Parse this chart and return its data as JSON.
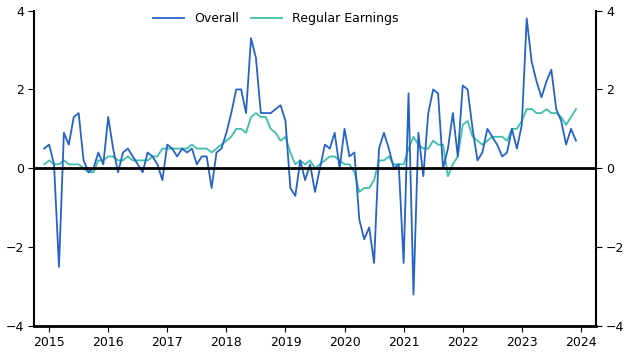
{
  "overall_color": "#2563c7",
  "regular_color": "#3dbfaa",
  "ylim": [
    -4,
    4
  ],
  "yticks": [
    -4,
    -2,
    0,
    2,
    4
  ],
  "xlim_start": 2014.75,
  "xlim_end": 2024.25,
  "xtick_years": [
    2015,
    2016,
    2017,
    2018,
    2019,
    2020,
    2021,
    2022,
    2023,
    2024
  ],
  "overall_dates": [
    2014.917,
    2015.0,
    2015.083,
    2015.167,
    2015.25,
    2015.333,
    2015.417,
    2015.5,
    2015.583,
    2015.667,
    2015.75,
    2015.833,
    2015.917,
    2016.0,
    2016.083,
    2016.167,
    2016.25,
    2016.333,
    2016.417,
    2016.5,
    2016.583,
    2016.667,
    2016.75,
    2016.833,
    2016.917,
    2017.0,
    2017.083,
    2017.167,
    2017.25,
    2017.333,
    2017.417,
    2017.5,
    2017.583,
    2017.667,
    2017.75,
    2017.833,
    2017.917,
    2018.0,
    2018.083,
    2018.167,
    2018.25,
    2018.333,
    2018.417,
    2018.5,
    2018.583,
    2018.667,
    2018.75,
    2018.833,
    2018.917,
    2019.0,
    2019.083,
    2019.167,
    2019.25,
    2019.333,
    2019.417,
    2019.5,
    2019.583,
    2019.667,
    2019.75,
    2019.833,
    2019.917,
    2020.0,
    2020.083,
    2020.167,
    2020.25,
    2020.333,
    2020.417,
    2020.5,
    2020.583,
    2020.667,
    2020.75,
    2020.833,
    2020.917,
    2021.0,
    2021.083,
    2021.167,
    2021.25,
    2021.333,
    2021.417,
    2021.5,
    2021.583,
    2021.667,
    2021.75,
    2021.833,
    2021.917,
    2022.0,
    2022.083,
    2022.167,
    2022.25,
    2022.333,
    2022.417,
    2022.5,
    2022.583,
    2022.667,
    2022.75,
    2022.833,
    2022.917,
    2023.0,
    2023.083,
    2023.167,
    2023.25,
    2023.333,
    2023.417,
    2023.5,
    2023.583,
    2023.667,
    2023.75,
    2023.833,
    2023.917
  ],
  "overall_values": [
    0.5,
    0.6,
    0.1,
    -2.5,
    0.9,
    0.6,
    1.3,
    1.4,
    0.2,
    -0.1,
    0.0,
    0.4,
    0.1,
    1.3,
    0.5,
    -0.1,
    0.4,
    0.5,
    0.3,
    0.1,
    -0.1,
    0.4,
    0.3,
    0.1,
    -0.3,
    0.6,
    0.5,
    0.3,
    0.5,
    0.4,
    0.5,
    0.1,
    0.3,
    0.3,
    -0.5,
    0.4,
    0.5,
    0.9,
    1.4,
    2.0,
    2.0,
    1.4,
    3.3,
    2.8,
    1.4,
    1.4,
    1.4,
    1.5,
    1.6,
    1.2,
    -0.5,
    -0.7,
    0.2,
    -0.3,
    0.1,
    -0.6,
    0.0,
    0.6,
    0.5,
    0.9,
    0.0,
    1.0,
    0.3,
    0.4,
    -1.3,
    -1.8,
    -1.5,
    -2.4,
    0.5,
    0.9,
    0.5,
    0.0,
    0.1,
    -2.4,
    1.9,
    -3.2,
    0.9,
    -0.2,
    1.4,
    2.0,
    1.9,
    0.0,
    0.5,
    1.4,
    0.3,
    2.1,
    2.0,
    1.0,
    0.2,
    0.4,
    1.0,
    0.8,
    0.6,
    0.3,
    0.4,
    1.0,
    0.5,
    1.1,
    3.8,
    2.7,
    2.2,
    1.8,
    2.2,
    2.5,
    1.5,
    1.2,
    0.6,
    1.0,
    0.7
  ],
  "regular_dates": [
    2014.917,
    2015.0,
    2015.083,
    2015.167,
    2015.25,
    2015.333,
    2015.417,
    2015.5,
    2015.583,
    2015.667,
    2015.75,
    2015.833,
    2015.917,
    2016.0,
    2016.083,
    2016.167,
    2016.25,
    2016.333,
    2016.417,
    2016.5,
    2016.583,
    2016.667,
    2016.75,
    2016.833,
    2016.917,
    2017.0,
    2017.083,
    2017.167,
    2017.25,
    2017.333,
    2017.417,
    2017.5,
    2017.583,
    2017.667,
    2017.75,
    2017.833,
    2017.917,
    2018.0,
    2018.083,
    2018.167,
    2018.25,
    2018.333,
    2018.417,
    2018.5,
    2018.583,
    2018.667,
    2018.75,
    2018.833,
    2018.917,
    2019.0,
    2019.083,
    2019.167,
    2019.25,
    2019.333,
    2019.417,
    2019.5,
    2019.583,
    2019.667,
    2019.75,
    2019.833,
    2019.917,
    2020.0,
    2020.083,
    2020.167,
    2020.25,
    2020.333,
    2020.417,
    2020.5,
    2020.583,
    2020.667,
    2020.75,
    2020.833,
    2020.917,
    2021.0,
    2021.083,
    2021.167,
    2021.25,
    2021.333,
    2021.417,
    2021.5,
    2021.583,
    2021.667,
    2021.75,
    2021.833,
    2021.917,
    2022.0,
    2022.083,
    2022.167,
    2022.25,
    2022.333,
    2022.417,
    2022.5,
    2022.583,
    2022.667,
    2022.75,
    2022.833,
    2022.917,
    2023.0,
    2023.083,
    2023.167,
    2023.25,
    2023.333,
    2023.417,
    2023.5,
    2023.583,
    2023.667,
    2023.75,
    2023.833,
    2023.917
  ],
  "regular_values": [
    0.1,
    0.2,
    0.1,
    0.1,
    0.2,
    0.1,
    0.1,
    0.1,
    0.0,
    -0.1,
    -0.1,
    0.2,
    0.2,
    0.3,
    0.3,
    0.2,
    0.2,
    0.3,
    0.2,
    0.2,
    0.2,
    0.2,
    0.3,
    0.3,
    0.5,
    0.5,
    0.5,
    0.5,
    0.5,
    0.5,
    0.6,
    0.5,
    0.5,
    0.5,
    0.4,
    0.5,
    0.6,
    0.7,
    0.8,
    1.0,
    1.0,
    0.9,
    1.3,
    1.4,
    1.3,
    1.3,
    1.0,
    0.9,
    0.7,
    0.8,
    0.4,
    0.1,
    0.2,
    0.1,
    0.2,
    0.0,
    0.1,
    0.2,
    0.3,
    0.3,
    0.2,
    0.1,
    0.1,
    -0.1,
    -0.6,
    -0.5,
    -0.5,
    -0.3,
    0.2,
    0.2,
    0.3,
    0.1,
    0.1,
    0.1,
    0.5,
    0.8,
    0.6,
    0.5,
    0.5,
    0.7,
    0.6,
    0.6,
    -0.2,
    0.1,
    0.3,
    1.1,
    1.2,
    0.8,
    0.7,
    0.6,
    0.7,
    0.8,
    0.8,
    0.8,
    0.7,
    1.0,
    1.0,
    1.2,
    1.5,
    1.5,
    1.4,
    1.4,
    1.5,
    1.4,
    1.4,
    1.3,
    1.1,
    1.3,
    1.5
  ]
}
